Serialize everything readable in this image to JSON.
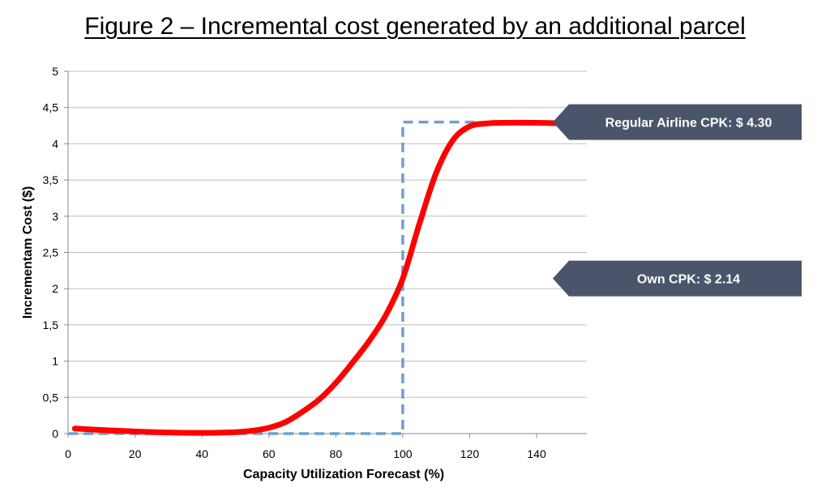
{
  "title": "Figure 2 – Incremental cost generated by an additional parcel",
  "chart_data": {
    "type": "line",
    "xlabel": "Capacity Utilization Forecast (%)",
    "ylabel": "Incrementam Cost ($)",
    "xlim": [
      0,
      155
    ],
    "ylim": [
      0,
      5
    ],
    "x_ticks": [
      "0",
      "20",
      "40",
      "60",
      "80",
      "100",
      "120",
      "140"
    ],
    "y_ticks": [
      "0",
      "0,5",
      "1",
      "1,5",
      "2",
      "2,5",
      "3",
      "3,5",
      "4",
      "4,5",
      "5"
    ],
    "grid": "horizontal",
    "series": [
      {
        "style": "solid",
        "color": "#ff0000",
        "points": [
          [
            2,
            0.07
          ],
          [
            10,
            0.05
          ],
          [
            20,
            0.03
          ],
          [
            30,
            0.015
          ],
          [
            40,
            0.01
          ],
          [
            50,
            0.02
          ],
          [
            55,
            0.04
          ],
          [
            60,
            0.08
          ],
          [
            65,
            0.16
          ],
          [
            70,
            0.3
          ],
          [
            75,
            0.47
          ],
          [
            80,
            0.7
          ],
          [
            85,
            0.98
          ],
          [
            90,
            1.28
          ],
          [
            95,
            1.64
          ],
          [
            100,
            2.14
          ],
          [
            105,
            2.9
          ],
          [
            110,
            3.6
          ],
          [
            115,
            4.05
          ],
          [
            120,
            4.24
          ],
          [
            125,
            4.28
          ],
          [
            130,
            4.29
          ],
          [
            140,
            4.29
          ],
          [
            150,
            4.28
          ]
        ]
      },
      {
        "style": "dashed",
        "color": "#6fa0d0",
        "points": [
          [
            0,
            0
          ],
          [
            100,
            0
          ],
          [
            100,
            4.3
          ],
          [
            122,
            4.3
          ]
        ]
      }
    ],
    "annotations": [
      {
        "text": "Regular Airline CPK: $ 4.30",
        "y": 4.3
      },
      {
        "text": "Own CPK: $ 2.14",
        "y": 2.14
      }
    ],
    "colors": {
      "callout_fill": "#4a556b",
      "grid": "#bfbfbf"
    }
  }
}
